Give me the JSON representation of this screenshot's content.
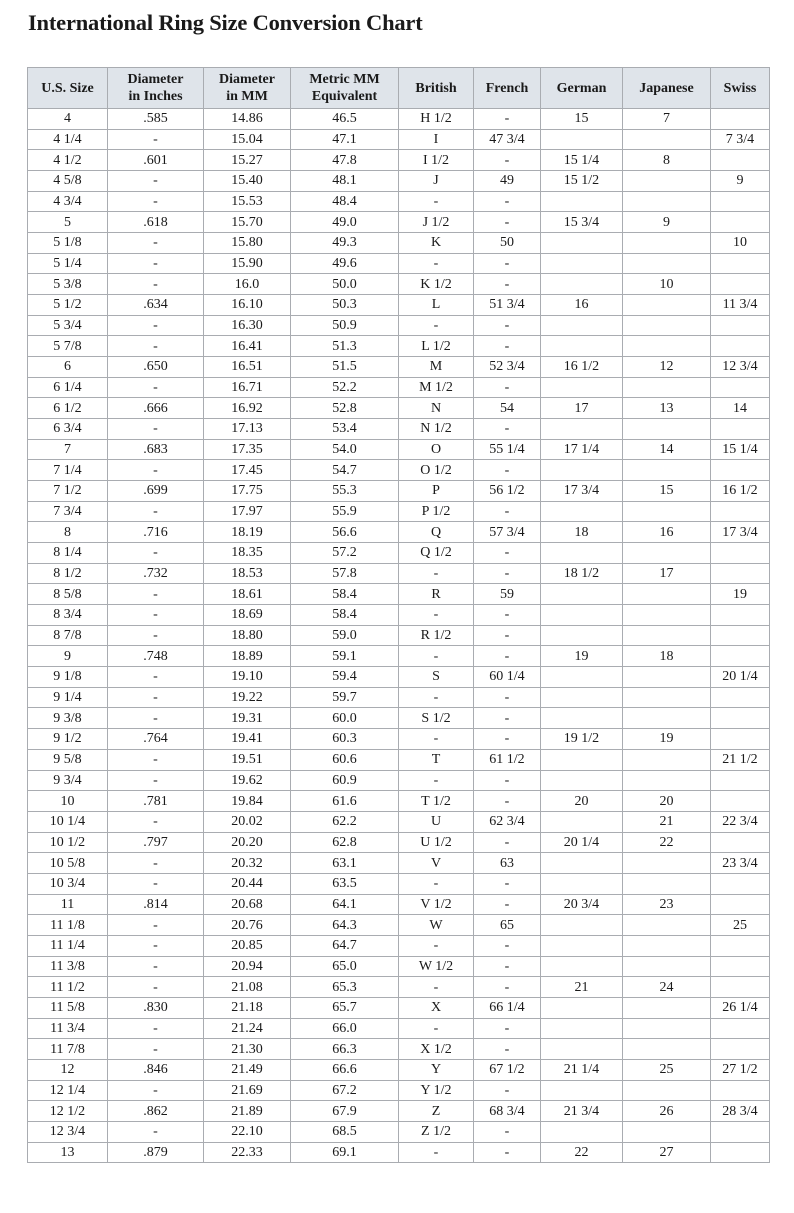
{
  "title": "International Ring Size Conversion Chart",
  "columns": [
    "U.S. Size",
    "Diameter in Inches",
    "Diameter in MM",
    "Metric MM Equivalent",
    "British",
    "French",
    "German",
    "Japanese",
    "Swiss"
  ],
  "colors": {
    "header_bg": "#dfe4ea",
    "border": "#a9acb1"
  },
  "rows": [
    [
      "4",
      ".585",
      "14.86",
      "46.5",
      "H 1/2",
      "-",
      "15",
      "7",
      ""
    ],
    [
      "4 1/4",
      "-",
      "15.04",
      "47.1",
      "I",
      "47 3/4",
      "",
      "",
      "7 3/4"
    ],
    [
      "4 1/2",
      ".601",
      "15.27",
      "47.8",
      "I 1/2",
      "-",
      "15 1/4",
      "8",
      ""
    ],
    [
      "4 5/8",
      "-",
      "15.40",
      "48.1",
      "J",
      "49",
      "15 1/2",
      "",
      "9"
    ],
    [
      "4 3/4",
      "-",
      "15.53",
      "48.4",
      "-",
      "-",
      "",
      "",
      ""
    ],
    [
      "5",
      ".618",
      "15.70",
      "49.0",
      "J 1/2",
      "-",
      "15 3/4",
      "9",
      ""
    ],
    [
      "5 1/8",
      "-",
      "15.80",
      "49.3",
      "K",
      "50",
      "",
      "",
      "10"
    ],
    [
      "5 1/4",
      "-",
      "15.90",
      "49.6",
      "-",
      "-",
      "",
      "",
      ""
    ],
    [
      "5 3/8",
      "-",
      "16.0",
      "50.0",
      "K 1/2",
      "-",
      "",
      "10",
      ""
    ],
    [
      "5 1/2",
      ".634",
      "16.10",
      "50.3",
      "L",
      "51 3/4",
      "16",
      "",
      "11 3/4"
    ],
    [
      "5 3/4",
      "-",
      "16.30",
      "50.9",
      "-",
      "-",
      "",
      "",
      ""
    ],
    [
      "5 7/8",
      "-",
      "16.41",
      "51.3",
      "L 1/2",
      "-",
      "",
      "",
      ""
    ],
    [
      "6",
      ".650",
      "16.51",
      "51.5",
      "M",
      "52 3/4",
      "16 1/2",
      "12",
      "12 3/4"
    ],
    [
      "6 1/4",
      "-",
      "16.71",
      "52.2",
      "M 1/2",
      "-",
      "",
      "",
      ""
    ],
    [
      "6 1/2",
      ".666",
      "16.92",
      "52.8",
      "N",
      "54",
      "17",
      "13",
      "14"
    ],
    [
      "6 3/4",
      "-",
      "17.13",
      "53.4",
      "N 1/2",
      "-",
      "",
      "",
      ""
    ],
    [
      "7",
      ".683",
      "17.35",
      "54.0",
      "O",
      "55 1/4",
      "17 1/4",
      "14",
      "15 1/4"
    ],
    [
      "7 1/4",
      "-",
      "17.45",
      "54.7",
      "O 1/2",
      "-",
      "",
      "",
      ""
    ],
    [
      "7 1/2",
      ".699",
      "17.75",
      "55.3",
      "P",
      "56 1/2",
      "17 3/4",
      "15",
      "16 1/2"
    ],
    [
      "7 3/4",
      "-",
      "17.97",
      "55.9",
      "P 1/2",
      "-",
      "",
      "",
      ""
    ],
    [
      "8",
      ".716",
      "18.19",
      "56.6",
      "Q",
      "57 3/4",
      "18",
      "16",
      "17 3/4"
    ],
    [
      "8 1/4",
      "-",
      "18.35",
      "57.2",
      "Q 1/2",
      "-",
      "",
      "",
      ""
    ],
    [
      "8 1/2",
      ".732",
      "18.53",
      "57.8",
      "-",
      "-",
      "18 1/2",
      "17",
      ""
    ],
    [
      "8 5/8",
      "-",
      "18.61",
      "58.4",
      "R",
      "59",
      "",
      "",
      "19"
    ],
    [
      "8 3/4",
      "-",
      "18.69",
      "58.4",
      "-",
      "-",
      "",
      "",
      ""
    ],
    [
      "8 7/8",
      "-",
      "18.80",
      "59.0",
      "R 1/2",
      "-",
      "",
      "",
      ""
    ],
    [
      "9",
      ".748",
      "18.89",
      "59.1",
      "-",
      "-",
      "19",
      "18",
      ""
    ],
    [
      "9 1/8",
      "-",
      "19.10",
      "59.4",
      "S",
      "60 1/4",
      "",
      "",
      "20 1/4"
    ],
    [
      "9 1/4",
      "-",
      "19.22",
      "59.7",
      "-",
      "-",
      "",
      "",
      ""
    ],
    [
      "9 3/8",
      "-",
      "19.31",
      "60.0",
      "S 1/2",
      "-",
      "",
      "",
      ""
    ],
    [
      "9 1/2",
      ".764",
      "19.41",
      "60.3",
      "-",
      "-",
      "19 1/2",
      "19",
      ""
    ],
    [
      "9 5/8",
      "-",
      "19.51",
      "60.6",
      "T",
      "61 1/2",
      "",
      "",
      "21 1/2"
    ],
    [
      "9 3/4",
      "-",
      "19.62",
      "60.9",
      "-",
      "-",
      "",
      "",
      ""
    ],
    [
      "10",
      ".781",
      "19.84",
      "61.6",
      "T 1/2",
      "-",
      "20",
      "20",
      ""
    ],
    [
      "10 1/4",
      "-",
      "20.02",
      "62.2",
      "U",
      "62 3/4",
      "",
      "21",
      "22 3/4"
    ],
    [
      "10 1/2",
      ".797",
      "20.20",
      "62.8",
      "U 1/2",
      "-",
      "20 1/4",
      "22",
      ""
    ],
    [
      "10 5/8",
      "-",
      "20.32",
      "63.1",
      "V",
      "63",
      "",
      "",
      "23 3/4"
    ],
    [
      "10 3/4",
      "-",
      "20.44",
      "63.5",
      "-",
      "-",
      "",
      "",
      ""
    ],
    [
      "11",
      ".814",
      "20.68",
      "64.1",
      "V 1/2",
      "-",
      "20 3/4",
      "23",
      ""
    ],
    [
      "11 1/8",
      "-",
      "20.76",
      "64.3",
      "W",
      "65",
      "",
      "",
      "25"
    ],
    [
      "11 1/4",
      "-",
      "20.85",
      "64.7",
      "-",
      "-",
      "",
      "",
      ""
    ],
    [
      "11 3/8",
      "-",
      "20.94",
      "65.0",
      "W 1/2",
      "-",
      "",
      "",
      ""
    ],
    [
      "11 1/2",
      "-",
      "21.08",
      "65.3",
      "-",
      "-",
      "21",
      "24",
      ""
    ],
    [
      "11 5/8",
      ".830",
      "21.18",
      "65.7",
      "X",
      "66 1/4",
      "",
      "",
      "26 1/4"
    ],
    [
      "11 3/4",
      "-",
      "21.24",
      "66.0",
      "-",
      "-",
      "",
      "",
      ""
    ],
    [
      "11 7/8",
      "-",
      "21.30",
      "66.3",
      "X 1/2",
      "-",
      "",
      "",
      ""
    ],
    [
      "12",
      ".846",
      "21.49",
      "66.6",
      "Y",
      "67 1/2",
      "21 1/4",
      "25",
      "27 1/2"
    ],
    [
      "12 1/4",
      "-",
      "21.69",
      "67.2",
      "Y 1/2",
      "-",
      "",
      "",
      ""
    ],
    [
      "12 1/2",
      ".862",
      "21.89",
      "67.9",
      "Z",
      "68 3/4",
      "21 3/4",
      "26",
      "28 3/4"
    ],
    [
      "12 3/4",
      "-",
      "22.10",
      "68.5",
      "Z 1/2",
      "-",
      "",
      "",
      ""
    ],
    [
      "13",
      ".879",
      "22.33",
      "69.1",
      "-",
      "-",
      "22",
      "27",
      ""
    ]
  ]
}
